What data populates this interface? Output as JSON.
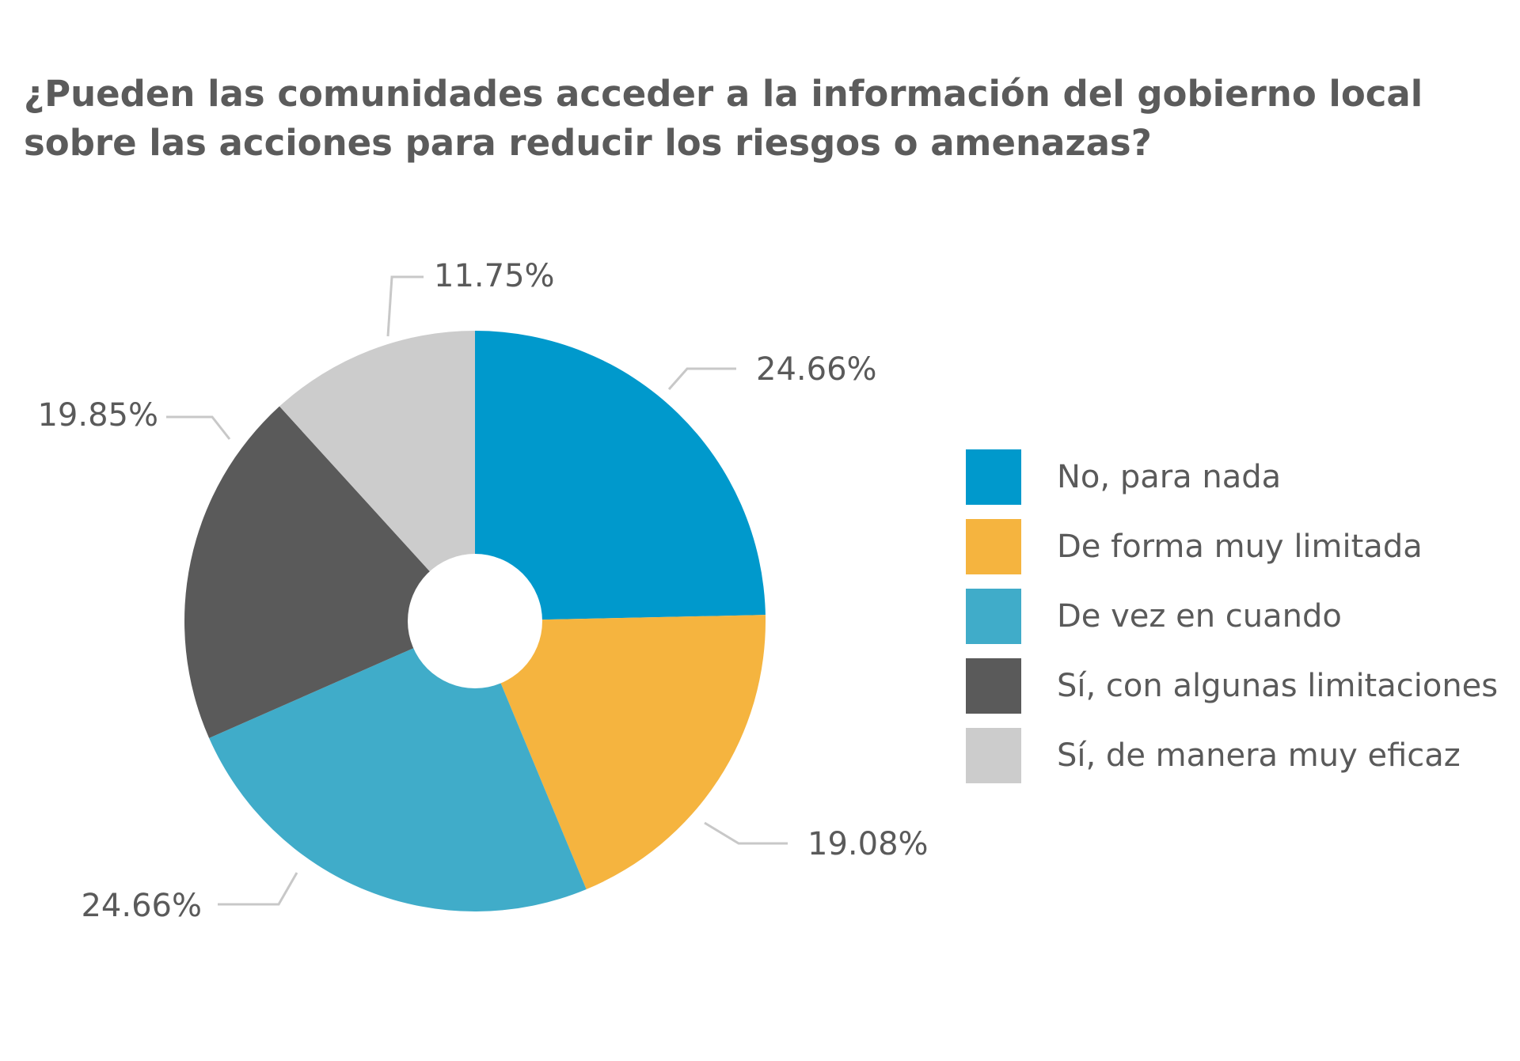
{
  "chart_data": {
    "type": "pie",
    "title": "¿Pueden las comunidades acceder a la información del gobierno local sobre las acciones para reducir los riesgos o amenazas?",
    "categories": [
      "No, para nada",
      "De forma muy limitada",
      "De vez en cuando",
      "Sí, con algunas limitaciones",
      "Sí, de manera muy eficaz"
    ],
    "values": [
      24.66,
      19.08,
      24.66,
      19.85,
      11.75
    ],
    "labels": [
      "24.66%",
      "19.08%",
      "24.66%",
      "19.85%",
      "11.75%"
    ],
    "colors": [
      "#0099cc",
      "#f5b43f",
      "#40acc9",
      "#5a5a5a",
      "#cccccc"
    ],
    "start": "12 o'clock, clockwise",
    "donut_hole": true,
    "legend_position": "right"
  }
}
